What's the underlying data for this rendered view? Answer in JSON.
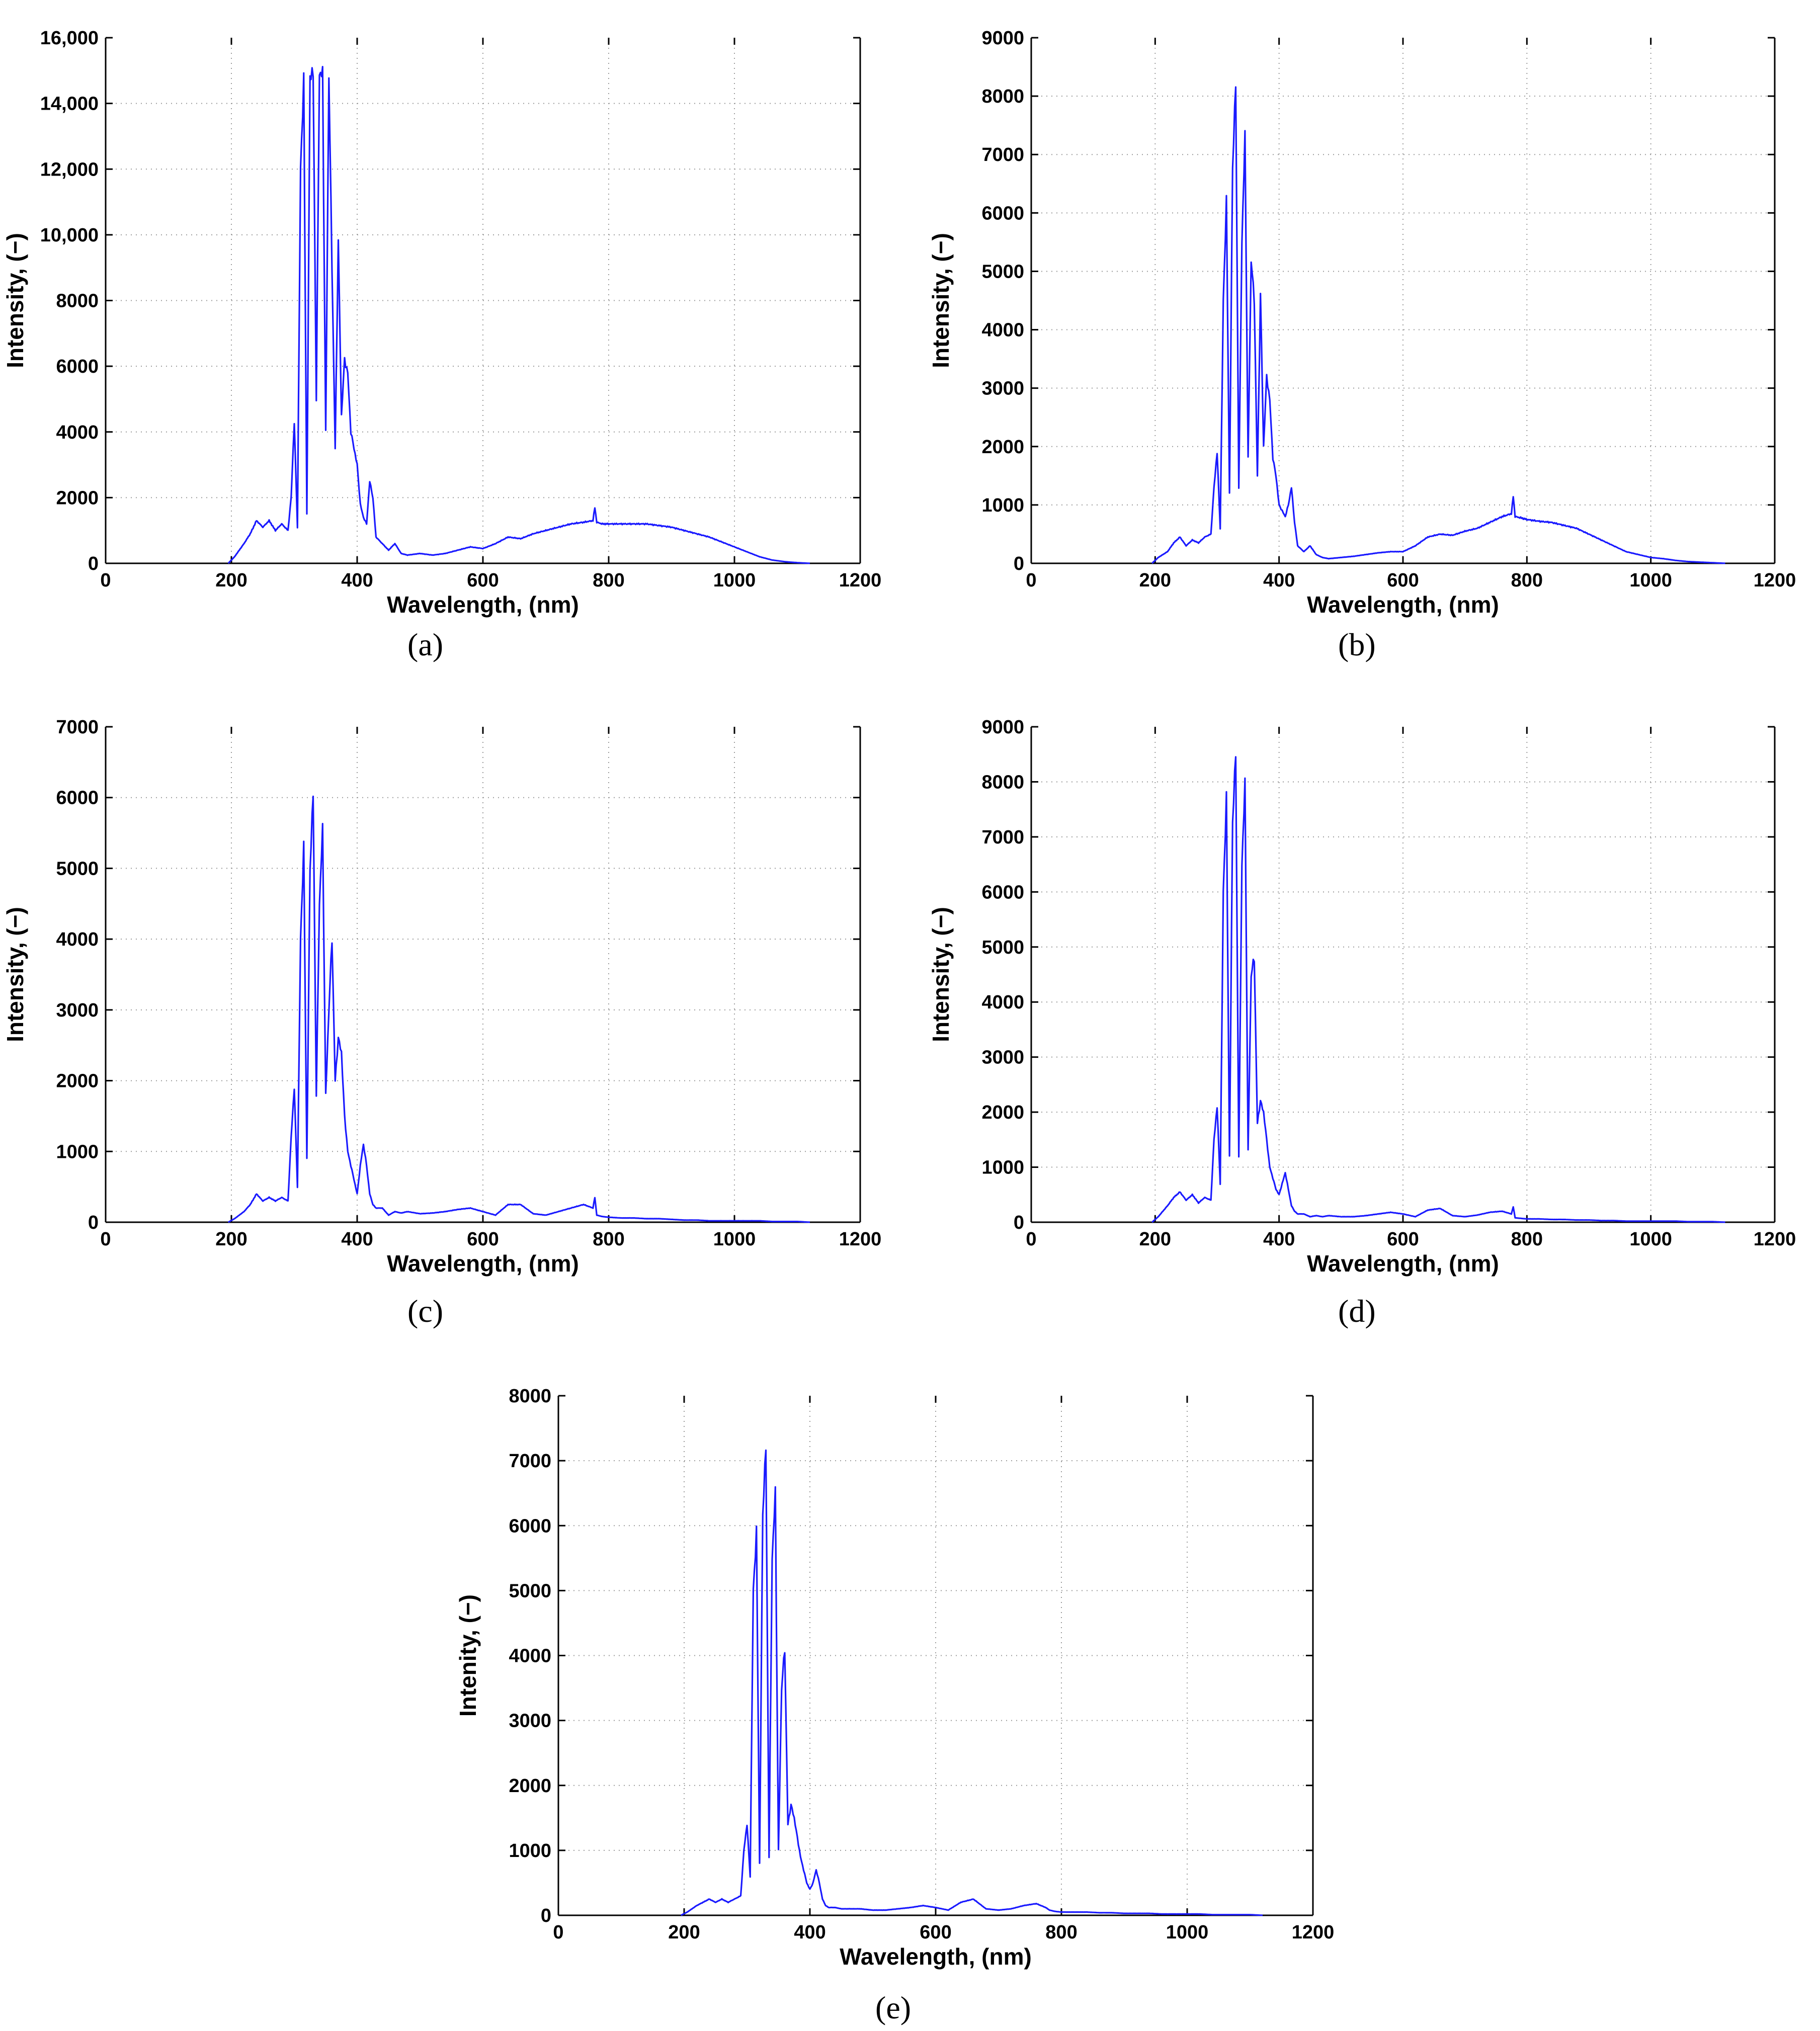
{
  "chart_data": [
    {
      "panel": "(a)",
      "type": "line",
      "xlabel": "Wavelength, (nm)",
      "ylabel": "Intensity, (−)",
      "xlim": [
        0,
        1200
      ],
      "ylim": [
        0,
        16000
      ],
      "xticks": [
        "0",
        "200",
        "400",
        "600",
        "800",
        "1000",
        "1200"
      ],
      "yticks": [
        "0",
        "2000",
        "4000",
        "6000",
        "8000",
        "10,000",
        "12,000",
        "14,000",
        "16,000"
      ],
      "grid": true,
      "series_color": "#1a1aff",
      "series": [
        {
          "x": [
            195,
            205,
            220,
            230,
            240,
            250,
            260,
            270,
            280,
            290,
            295,
            300,
            305,
            310,
            315,
            320,
            325,
            330,
            335,
            340,
            345,
            350,
            355,
            360,
            365,
            370,
            375,
            380,
            385,
            390,
            395,
            400,
            405,
            410,
            415,
            420,
            425,
            430,
            440,
            450,
            460,
            470,
            480,
            500,
            520,
            540,
            560,
            580,
            600,
            620,
            640,
            660,
            680,
            700,
            720,
            740,
            760,
            775,
            778,
            781,
            790,
            800,
            820,
            840,
            860,
            880,
            900,
            920,
            940,
            960,
            980,
            1000,
            1020,
            1040,
            1060,
            1080,
            1100,
            1120
          ],
          "values": [
            0,
            200,
            600,
            900,
            1300,
            1100,
            1300,
            1000,
            1200,
            1000,
            2000,
            4300,
            1100,
            12000,
            14700,
            1500,
            14900,
            14900,
            5000,
            14900,
            14900,
            4000,
            14900,
            9000,
            3500,
            9800,
            4500,
            6200,
            5800,
            4000,
            3500,
            3000,
            1800,
            1400,
            1200,
            2500,
            2000,
            800,
            600,
            400,
            600,
            300,
            250,
            300,
            250,
            300,
            400,
            500,
            450,
            600,
            800,
            750,
            900,
            1000,
            1100,
            1200,
            1250,
            1300,
            1700,
            1250,
            1200,
            1200,
            1200,
            1200,
            1200,
            1150,
            1100,
            1000,
            900,
            800,
            650,
            500,
            350,
            200,
            100,
            50,
            20,
            0
          ]
        }
      ]
    },
    {
      "panel": "(b)",
      "type": "line",
      "xlabel": "Wavelength, (nm)",
      "ylabel": "Intensity, (−)",
      "xlim": [
        0,
        1200
      ],
      "ylim": [
        0,
        9000
      ],
      "xticks": [
        "0",
        "200",
        "400",
        "600",
        "800",
        "1000",
        "1200"
      ],
      "yticks": [
        "0",
        "1000",
        "2000",
        "3000",
        "4000",
        "5000",
        "6000",
        "7000",
        "8000",
        "9000"
      ],
      "grid": true,
      "series_color": "#1a1aff",
      "series": [
        {
          "x": [
            195,
            205,
            220,
            230,
            240,
            250,
            260,
            270,
            280,
            290,
            295,
            300,
            305,
            310,
            315,
            320,
            325,
            330,
            335,
            340,
            345,
            350,
            355,
            360,
            365,
            370,
            375,
            380,
            385,
            390,
            395,
            400,
            405,
            410,
            415,
            420,
            425,
            430,
            440,
            450,
            460,
            470,
            480,
            500,
            520,
            540,
            560,
            580,
            600,
            620,
            640,
            660,
            680,
            700,
            720,
            740,
            760,
            775,
            778,
            781,
            790,
            800,
            820,
            840,
            860,
            880,
            900,
            920,
            940,
            960,
            980,
            1000,
            1020,
            1040,
            1060,
            1080,
            1100,
            1120
          ],
          "values": [
            0,
            100,
            200,
            350,
            450,
            300,
            400,
            350,
            450,
            500,
            1300,
            1900,
            600,
            4500,
            6200,
            1200,
            6800,
            8200,
            1300,
            5500,
            7300,
            1800,
            5200,
            4500,
            1500,
            4600,
            2000,
            3200,
            2800,
            1800,
            1500,
            1000,
            900,
            800,
            1000,
            1300,
            700,
            300,
            200,
            300,
            150,
            100,
            80,
            100,
            120,
            150,
            180,
            200,
            200,
            300,
            450,
            500,
            480,
            550,
            600,
            700,
            800,
            850,
            1150,
            800,
            780,
            750,
            720,
            700,
            650,
            600,
            500,
            400,
            300,
            200,
            150,
            100,
            80,
            50,
            30,
            20,
            10,
            0
          ]
        }
      ]
    },
    {
      "panel": "(c)",
      "type": "line",
      "xlabel": "Wavelength, (nm)",
      "ylabel": "Intensity, (−)",
      "xlim": [
        0,
        1200
      ],
      "ylim": [
        0,
        7000
      ],
      "xticks": [
        "0",
        "200",
        "400",
        "600",
        "800",
        "1000",
        "1200"
      ],
      "yticks": [
        "0",
        "1000",
        "2000",
        "3000",
        "4000",
        "5000",
        "6000",
        "7000"
      ],
      "grid": true,
      "series_color": "#1a1aff",
      "series": [
        {
          "x": [
            195,
            205,
            220,
            230,
            240,
            250,
            260,
            270,
            280,
            290,
            295,
            300,
            305,
            310,
            315,
            320,
            325,
            330,
            335,
            340,
            345,
            350,
            355,
            360,
            365,
            370,
            375,
            380,
            385,
            390,
            395,
            400,
            405,
            410,
            415,
            420,
            425,
            430,
            440,
            450,
            460,
            470,
            480,
            500,
            520,
            540,
            560,
            580,
            600,
            620,
            640,
            660,
            680,
            700,
            720,
            740,
            760,
            775,
            778,
            781,
            790,
            800,
            820,
            840,
            860,
            880,
            900,
            920,
            940,
            960,
            980,
            1000,
            1020,
            1040,
            1060,
            1080,
            1100,
            1120
          ],
          "values": [
            0,
            50,
            150,
            250,
            400,
            300,
            350,
            300,
            350,
            300,
            1200,
            1900,
            500,
            4000,
            5300,
            900,
            5000,
            6050,
            1800,
            4500,
            5550,
            1800,
            3000,
            4000,
            2000,
            2600,
            2400,
            1500,
            1000,
            800,
            600,
            400,
            800,
            1100,
            800,
            400,
            250,
            200,
            200,
            100,
            150,
            130,
            150,
            120,
            130,
            150,
            180,
            200,
            150,
            100,
            250,
            250,
            120,
            100,
            150,
            200,
            250,
            200,
            350,
            100,
            80,
            70,
            60,
            60,
            50,
            50,
            40,
            30,
            30,
            20,
            20,
            20,
            20,
            20,
            10,
            10,
            10,
            0
          ]
        }
      ]
    },
    {
      "panel": "(d)",
      "type": "line",
      "xlabel": "Wavelength, (nm)",
      "ylabel": "Intensity, (−)",
      "xlim": [
        0,
        1200
      ],
      "ylim": [
        0,
        9000
      ],
      "xticks": [
        "0",
        "200",
        "400",
        "600",
        "800",
        "1000",
        "1200"
      ],
      "yticks": [
        "0",
        "1000",
        "2000",
        "3000",
        "4000",
        "5000",
        "6000",
        "7000",
        "8000",
        "9000"
      ],
      "grid": true,
      "series_color": "#1a1aff",
      "series": [
        {
          "x": [
            195,
            205,
            220,
            230,
            240,
            250,
            260,
            270,
            280,
            290,
            295,
            300,
            305,
            310,
            315,
            320,
            325,
            330,
            335,
            340,
            345,
            350,
            355,
            360,
            365,
            370,
            375,
            380,
            385,
            390,
            395,
            400,
            405,
            410,
            415,
            420,
            425,
            430,
            440,
            450,
            460,
            470,
            480,
            500,
            520,
            540,
            560,
            580,
            600,
            620,
            640,
            660,
            680,
            700,
            720,
            740,
            760,
            775,
            778,
            781,
            790,
            800,
            820,
            840,
            860,
            880,
            900,
            920,
            940,
            960,
            980,
            1000,
            1020,
            1040,
            1060,
            1080,
            1100,
            1120
          ],
          "values": [
            0,
            100,
            300,
            450,
            550,
            400,
            500,
            350,
            450,
            400,
            1500,
            2100,
            700,
            6000,
            7700,
            1200,
            7300,
            8500,
            1200,
            6500,
            7950,
            1300,
            4500,
            4800,
            1800,
            2200,
            2000,
            1500,
            1000,
            800,
            600,
            500,
            700,
            900,
            600,
            300,
            200,
            150,
            150,
            100,
            120,
            100,
            120,
            100,
            100,
            120,
            150,
            180,
            150,
            100,
            220,
            250,
            120,
            100,
            130,
            180,
            200,
            150,
            280,
            80,
            70,
            60,
            60,
            50,
            50,
            40,
            40,
            30,
            30,
            20,
            20,
            20,
            20,
            20,
            10,
            10,
            10,
            0
          ]
        }
      ]
    },
    {
      "panel": "(e)",
      "type": "line",
      "xlabel": "Wavelength, (nm)",
      "ylabel": "Intenity, (−)",
      "xlim": [
        0,
        1200
      ],
      "ylim": [
        0,
        8000
      ],
      "xticks": [
        "0",
        "200",
        "400",
        "600",
        "800",
        "1000",
        "1200"
      ],
      "yticks": [
        "0",
        "1000",
        "2000",
        "3000",
        "4000",
        "5000",
        "6000",
        "7000",
        "8000"
      ],
      "grid": true,
      "series_color": "#1a1aff",
      "series": [
        {
          "x": [
            195,
            205,
            220,
            230,
            240,
            250,
            260,
            270,
            280,
            290,
            295,
            300,
            305,
            310,
            315,
            320,
            325,
            330,
            335,
            340,
            345,
            350,
            355,
            360,
            365,
            370,
            375,
            380,
            385,
            390,
            395,
            400,
            405,
            410,
            415,
            420,
            425,
            430,
            440,
            450,
            460,
            470,
            480,
            500,
            520,
            540,
            560,
            580,
            600,
            620,
            640,
            660,
            680,
            700,
            720,
            740,
            760,
            775,
            778,
            781,
            790,
            800,
            820,
            840,
            860,
            880,
            900,
            920,
            940,
            960,
            980,
            1000,
            1020,
            1040,
            1060,
            1080,
            1100,
            1120
          ],
          "values": [
            0,
            50,
            150,
            200,
            250,
            200,
            250,
            200,
            250,
            300,
            1000,
            1400,
            600,
            5000,
            5900,
            800,
            6200,
            7200,
            900,
            5500,
            6500,
            1000,
            3500,
            4100,
            1400,
            1700,
            1500,
            1200,
            900,
            700,
            500,
            400,
            500,
            700,
            500,
            250,
            150,
            120,
            120,
            100,
            100,
            100,
            100,
            80,
            80,
            100,
            120,
            150,
            120,
            80,
            200,
            250,
            100,
            80,
            100,
            150,
            180,
            120,
            100,
            80,
            60,
            50,
            50,
            50,
            40,
            40,
            30,
            30,
            30,
            20,
            20,
            20,
            20,
            10,
            10,
            10,
            10,
            0
          ]
        }
      ]
    }
  ]
}
